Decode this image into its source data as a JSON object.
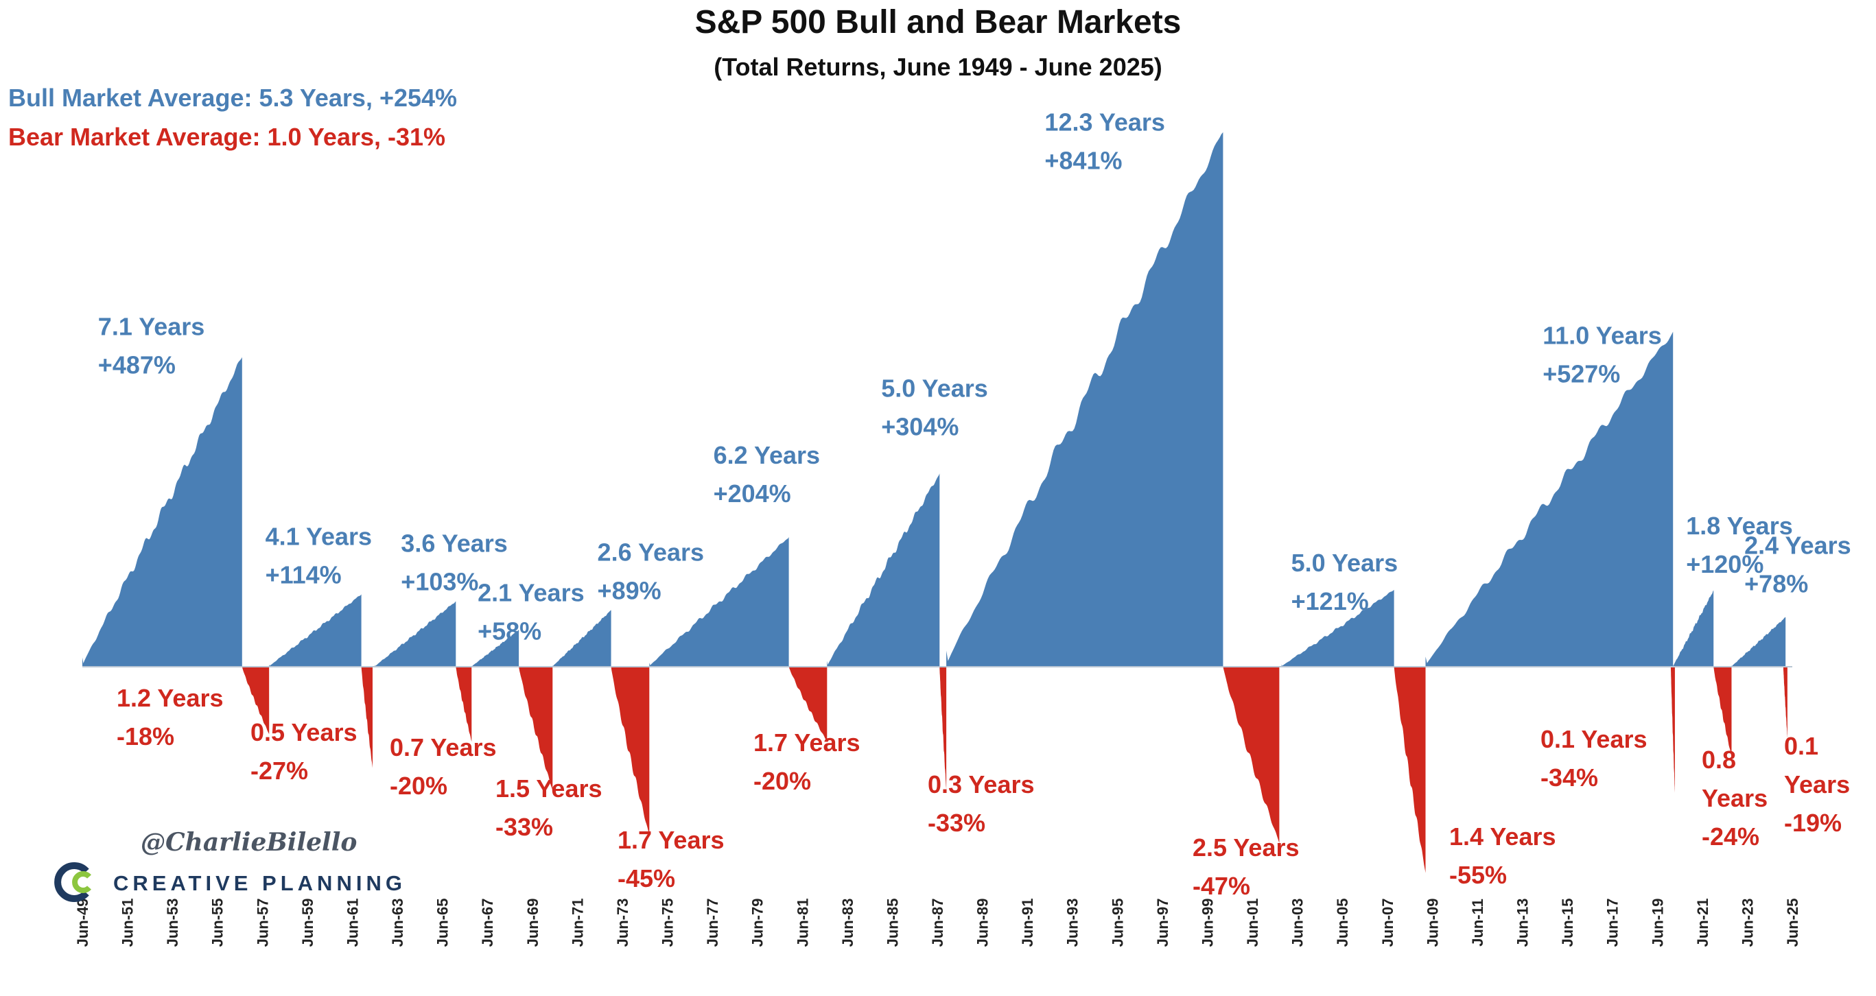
{
  "chart_data": {
    "type": "area",
    "title": "S&P 500 Bull and Bear Markets",
    "subtitle": "(Total Returns, June 1949 - June 2025)",
    "xlabel": "",
    "ylabel": "",
    "grid": false,
    "legend": "top-left",
    "bull_average_label": "Bull Market Average: 5.3 Years, +254%",
    "bear_average_label": "Bear Market Average: 1.0 Years, -31%",
    "x_range": [
      1949.5,
      2025.5
    ],
    "ylim_bull": [
      0,
      900
    ],
    "ylim_bear": [
      -60,
      0
    ],
    "tick_labels": [
      "Jun-49",
      "Jun-51",
      "Jun-53",
      "Jun-55",
      "Jun-57",
      "Jun-59",
      "Jun-61",
      "Jun-63",
      "Jun-65",
      "Jun-67",
      "Jun-69",
      "Jun-71",
      "Jun-73",
      "Jun-75",
      "Jun-77",
      "Jun-79",
      "Jun-81",
      "Jun-83",
      "Jun-85",
      "Jun-87",
      "Jun-89",
      "Jun-91",
      "Jun-93",
      "Jun-95",
      "Jun-97",
      "Jun-99",
      "Jun-01",
      "Jun-03",
      "Jun-05",
      "Jun-07",
      "Jun-09",
      "Jun-11",
      "Jun-13",
      "Jun-15",
      "Jun-17",
      "Jun-19",
      "Jun-21",
      "Jun-23",
      "Jun-25"
    ],
    "bull_markets": [
      {
        "start": 1949.5,
        "duration": 7.1,
        "return_pct": 487,
        "years_label": "7.1 Years",
        "return_label": "+487%"
      },
      {
        "start": 1957.8,
        "duration": 4.1,
        "return_pct": 114,
        "years_label": "4.1 Years",
        "return_label": "+114%"
      },
      {
        "start": 1962.5,
        "duration": 3.6,
        "return_pct": 103,
        "years_label": "3.6 Years",
        "return_label": "+103%"
      },
      {
        "start": 1966.8,
        "duration": 2.1,
        "return_pct": 58,
        "years_label": "2.1 Years",
        "return_label": "+58%"
      },
      {
        "start": 1970.4,
        "duration": 2.6,
        "return_pct": 89,
        "years_label": "2.6 Years",
        "return_label": "+89%"
      },
      {
        "start": 1974.7,
        "duration": 6.2,
        "return_pct": 204,
        "years_label": "6.2 Years",
        "return_label": "+204%"
      },
      {
        "start": 1982.6,
        "duration": 5.0,
        "return_pct": 304,
        "years_label": "5.0 Years",
        "return_label": "+304%"
      },
      {
        "start": 1987.9,
        "duration": 12.3,
        "return_pct": 841,
        "years_label": "12.3 Years",
        "return_label": "+841%"
      },
      {
        "start": 2002.8,
        "duration": 5.0,
        "return_pct": 121,
        "years_label": "5.0 Years",
        "return_label": "+121%"
      },
      {
        "start": 2009.2,
        "duration": 11.0,
        "return_pct": 527,
        "years_label": "11.0 Years",
        "return_label": "+527%"
      },
      {
        "start": 2020.2,
        "duration": 1.8,
        "return_pct": 120,
        "years_label": "1.8 Years",
        "return_label": "+120%"
      },
      {
        "start": 2022.8,
        "duration": 2.4,
        "return_pct": 78,
        "years_label": "2.4 Years",
        "return_label": "+78%"
      }
    ],
    "bear_markets": [
      {
        "start": 1956.6,
        "duration": 1.2,
        "return_pct": -18,
        "years_label": "1.2 Years",
        "return_label": "-18%"
      },
      {
        "start": 1961.9,
        "duration": 0.5,
        "return_pct": -27,
        "years_label": "0.5 Years",
        "return_label": "-27%"
      },
      {
        "start": 1966.1,
        "duration": 0.7,
        "return_pct": -20,
        "years_label": "0.7 Years",
        "return_label": "-20%"
      },
      {
        "start": 1968.9,
        "duration": 1.5,
        "return_pct": -33,
        "years_label": "1.5 Years",
        "return_label": "-33%"
      },
      {
        "start": 1973.0,
        "duration": 1.7,
        "return_pct": -45,
        "years_label": "1.7 Years",
        "return_label": "-45%"
      },
      {
        "start": 1980.9,
        "duration": 1.7,
        "return_pct": -20,
        "years_label": "1.7 Years",
        "return_label": "-20%"
      },
      {
        "start": 1987.6,
        "duration": 0.3,
        "return_pct": -33,
        "years_label": "0.3 Years",
        "return_label": "-33%"
      },
      {
        "start": 2000.2,
        "duration": 2.5,
        "return_pct": -47,
        "years_label": "2.5 Years",
        "return_label": "-47%"
      },
      {
        "start": 2007.8,
        "duration": 1.4,
        "return_pct": -55,
        "years_label": "1.4 Years",
        "return_label": "-55%"
      },
      {
        "start": 2020.1,
        "duration": 0.1,
        "return_pct": -34,
        "years_label": "0.1 Years",
        "return_label": "-34%"
      },
      {
        "start": 2022.0,
        "duration": 0.8,
        "return_pct": -24,
        "years_label": "0.8",
        "years_label_line2": "Years",
        "return_label": "-24%"
      },
      {
        "start": 2025.1,
        "duration": 0.1,
        "return_pct": -19,
        "years_label": "0.1",
        "years_label_line2": "Years",
        "return_label": "-19%"
      }
    ]
  },
  "credits": {
    "handle": "@CharlieBilello",
    "brand": "CREATIVE PLANNING"
  },
  "colors": {
    "bull": "#4a7fb5",
    "bear": "#d0281e",
    "baseline": "#b9c6d4",
    "logo_dark": "#1f3a5f",
    "logo_green": "#8cc63f"
  }
}
